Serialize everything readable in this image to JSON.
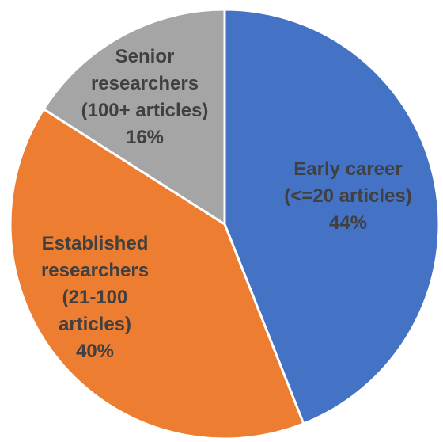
{
  "chart_data": {
    "type": "pie",
    "title": "",
    "slices": [
      {
        "name": "Early career",
        "lines": [
          "Early career",
          "(<=20 articles)",
          "44%"
        ],
        "value": 44,
        "color": "#4472C4",
        "label_color": "#404040"
      },
      {
        "name": "Established researchers",
        "lines": [
          "Established",
          "researchers",
          "(21-100",
          "articles)",
          "40%"
        ],
        "value": 40,
        "color": "#ED7D31",
        "label_color": "#404040"
      },
      {
        "name": "Senior researchers",
        "lines": [
          "Senior",
          "researchers",
          "(100+ articles)",
          "16%"
        ],
        "value": 16,
        "color": "#A5A5A5",
        "label_color": "#404040"
      }
    ],
    "start_angle": "12 o'clock",
    "direction": "clockwise",
    "legend": "none"
  }
}
